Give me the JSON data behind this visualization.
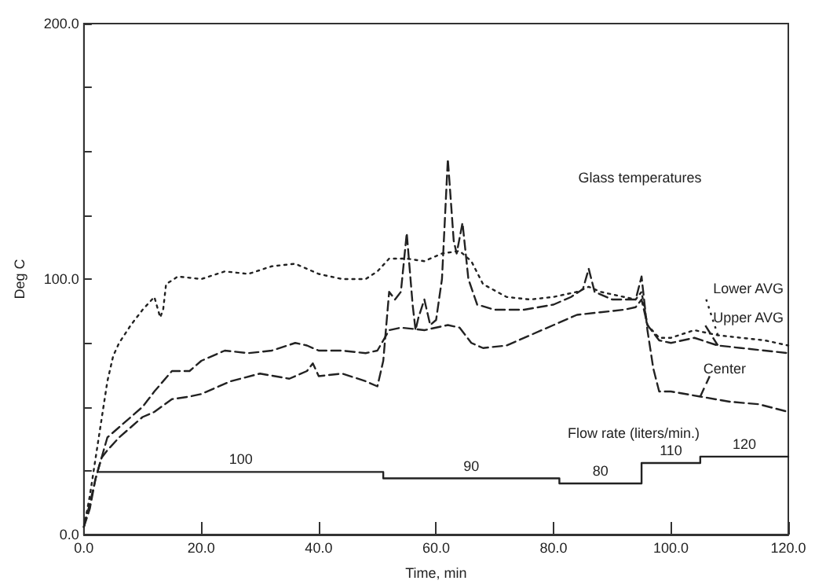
{
  "chart_data": {
    "type": "line",
    "xlabel": "Time, min",
    "ylabel": "Deg C",
    "xlim": [
      0,
      120
    ],
    "ylim": [
      0,
      200
    ],
    "xticks": [
      {
        "value": 0,
        "label": "0.0"
      },
      {
        "value": 20,
        "label": "20.0"
      },
      {
        "value": 40,
        "label": "40.0"
      },
      {
        "value": 60,
        "label": "60.0"
      },
      {
        "value": 80,
        "label": "80.0"
      },
      {
        "value": 100,
        "label": "100.0"
      },
      {
        "value": 120,
        "label": "120.0"
      }
    ],
    "yticks": [
      {
        "value": 0,
        "label": "0.0"
      },
      {
        "value": 25,
        "label": null
      },
      {
        "value": 50,
        "label": null
      },
      {
        "value": 75,
        "label": null
      },
      {
        "value": 100,
        "label": "100.0"
      },
      {
        "value": 125,
        "label": null
      },
      {
        "value": 150,
        "label": null
      },
      {
        "value": 175,
        "label": null
      },
      {
        "value": 200,
        "label": "200.0"
      }
    ],
    "grid": false,
    "legend": "right",
    "marker": "none",
    "series": [
      {
        "name": "Lower AVG",
        "color": "#222222",
        "line_style": "dotted",
        "x": [
          0,
          1,
          2,
          3,
          4,
          5,
          6,
          8,
          10,
          12,
          13,
          13.5,
          14,
          16,
          20,
          24,
          28,
          32,
          36,
          40,
          44,
          48,
          50,
          52,
          55,
          58,
          61,
          64,
          66,
          68,
          72,
          76,
          80,
          84,
          86,
          88,
          92,
          94,
          95,
          96,
          98,
          100,
          104,
          108,
          112,
          116,
          120
        ],
        "values": [
          3,
          15,
          30,
          45,
          60,
          70,
          75,
          82,
          88,
          93,
          85,
          88,
          98,
          101,
          100,
          103,
          102,
          105,
          106,
          102,
          100,
          100,
          103,
          108,
          108,
          107,
          110,
          111,
          107,
          98,
          93,
          92,
          93,
          95,
          97,
          95,
          93,
          92,
          95,
          82,
          77,
          77,
          80,
          78,
          77,
          76,
          74
        ]
      },
      {
        "name": "Upper AVG",
        "color": "#222222",
        "line_style": "dashed",
        "x": [
          0,
          1,
          2,
          3,
          4,
          6,
          8,
          10,
          12,
          15,
          18,
          20,
          24,
          28,
          32,
          36,
          38,
          40,
          44,
          48,
          50,
          52,
          54,
          58,
          62,
          64,
          66,
          68,
          72,
          76,
          80,
          84,
          88,
          92,
          94,
          95,
          96,
          98,
          100,
          104,
          108,
          112,
          116,
          120
        ],
        "values": [
          3,
          12,
          22,
          30,
          38,
          42,
          46,
          50,
          56,
          64,
          64,
          68,
          72,
          71,
          72,
          75,
          74,
          72,
          72,
          71,
          72,
          80,
          81,
          80,
          82,
          81,
          75,
          73,
          74,
          78,
          82,
          86,
          87,
          88,
          89,
          92,
          82,
          76,
          75,
          77,
          74,
          73,
          72,
          71
        ]
      },
      {
        "name": "Center",
        "color": "#222222",
        "line_style": "dashed",
        "x": [
          0,
          1,
          2,
          3,
          4,
          6,
          8,
          10,
          12,
          15,
          18,
          20,
          25,
          30,
          35,
          38,
          39,
          40,
          44,
          48,
          50,
          51,
          52,
          53,
          54,
          55,
          56,
          56.5,
          57,
          58,
          59,
          60,
          61,
          62,
          63,
          63.5,
          64.5,
          65.5,
          67,
          70,
          75,
          80,
          83,
          85,
          86,
          87,
          90,
          94,
          95,
          96,
          97,
          98,
          100,
          105,
          110,
          115,
          120
        ],
        "values": [
          3,
          10,
          22,
          30,
          33,
          38,
          42,
          46,
          48,
          53,
          54,
          55,
          60,
          63,
          61,
          64,
          67,
          62,
          63,
          60,
          58,
          68,
          95,
          92,
          95,
          118,
          90,
          80,
          85,
          92,
          82,
          84,
          100,
          147,
          115,
          110,
          122,
          100,
          90,
          88,
          88,
          90,
          93,
          96,
          104,
          95,
          92,
          92,
          101,
          80,
          65,
          56,
          56,
          54,
          52,
          51,
          48
        ]
      },
      {
        "name": "Flow rate (liters/min.)",
        "type": "step",
        "color": "#222222",
        "line_style": "solid",
        "x": [
          2.5,
          51,
          81,
          95,
          105,
          120
        ],
        "values": [
          24.5,
          22,
          20,
          28,
          30.5,
          30.5
        ]
      }
    ],
    "annotations": [
      "Glass temperatures",
      "100",
      "90",
      "80",
      "110",
      "120"
    ]
  }
}
